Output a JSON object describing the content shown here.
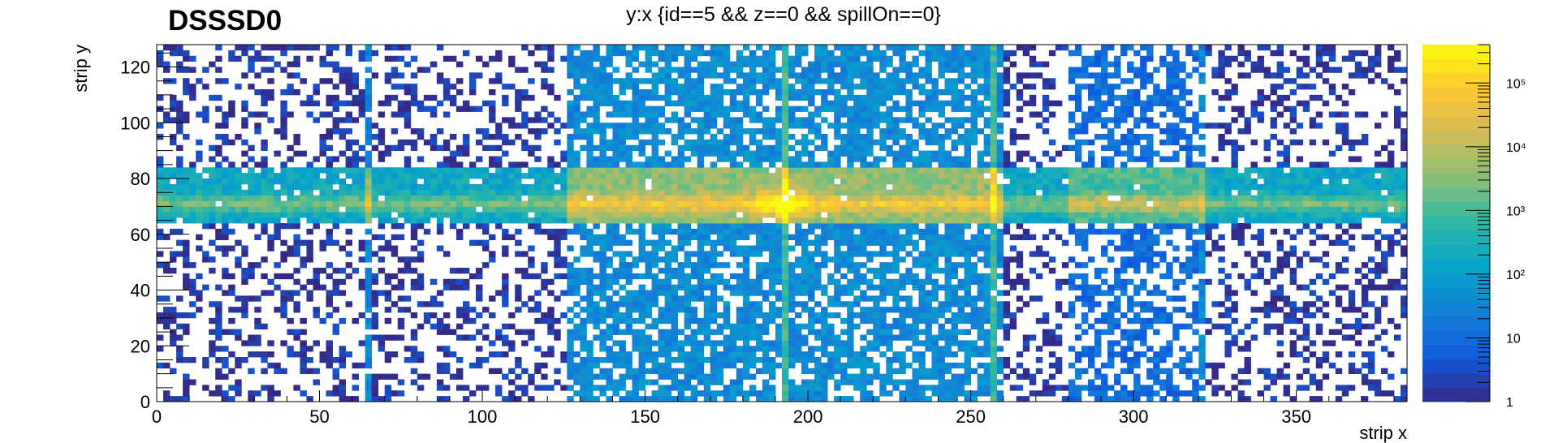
{
  "chart_data": {
    "type": "heatmap",
    "label": "DSSSD0",
    "title": "y:x {id==5 && z==0 && spillOn==0}",
    "xlabel": "strip x",
    "ylabel": "strip y",
    "xlim": [
      0,
      384
    ],
    "ylim": [
      0,
      128
    ],
    "x_ticks": [
      0,
      50,
      100,
      150,
      200,
      250,
      300,
      350
    ],
    "y_ticks": [
      0,
      20,
      40,
      60,
      80,
      100,
      120
    ],
    "z_scale": "log",
    "zlim": [
      1,
      400000
    ],
    "colorbar_labels": [
      {
        "value": 1,
        "text": "1"
      },
      {
        "value": 10,
        "text": "10"
      },
      {
        "value": 100,
        "text": "10²"
      },
      {
        "value": 1000,
        "text": "10³"
      },
      {
        "value": 10000,
        "text": "10⁴"
      },
      {
        "value": 100000,
        "text": "10⁵"
      }
    ],
    "colormap": [
      "#352a87",
      "#0f5cdd",
      "#1481d6",
      "#06a4ca",
      "#2eb7a4",
      "#87bf77",
      "#d1bb59",
      "#fec832",
      "#f9fb0e"
    ],
    "features": {
      "hot_band_y": [
        63,
        82
      ],
      "hot_band_peak_y": 70,
      "central_region_x": [
        130,
        257
      ],
      "hot_spot": {
        "x": 191,
        "y": 70
      },
      "dead_or_hot_columns_x": [
        64,
        126,
        128,
        192,
        257,
        320,
        384
      ]
    }
  }
}
